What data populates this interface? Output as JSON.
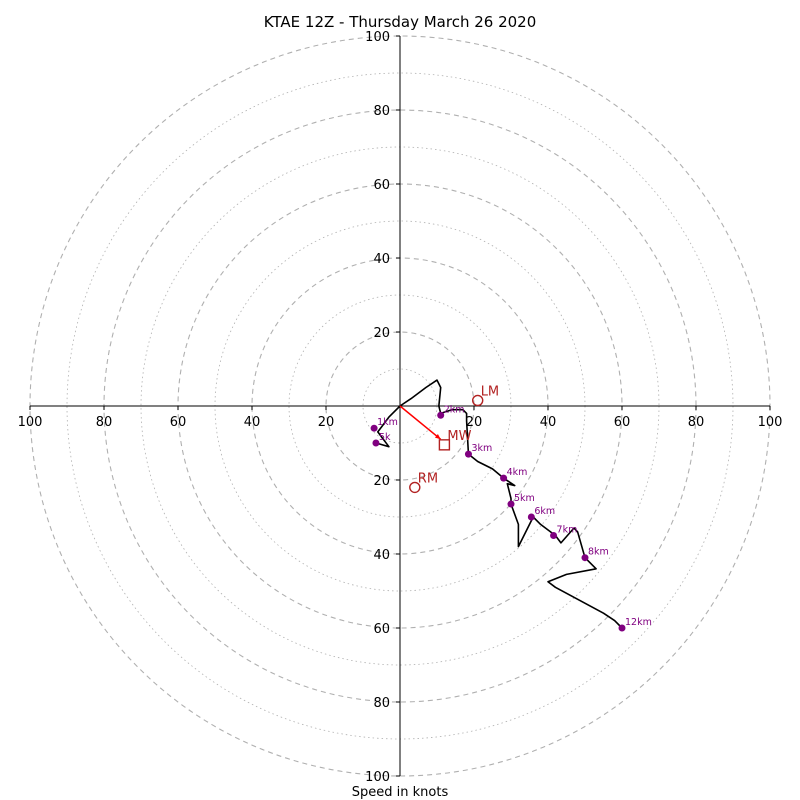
{
  "chart_data": {
    "type": "hodograph",
    "title": "KTAE 12Z - Thursday March 26 2020",
    "xlabel": "Speed in knots",
    "ring_max": 100,
    "ring_step_dashed": 20,
    "ring_step_dotted": 10,
    "xlim": [
      -100,
      100
    ],
    "ylim": [
      -100,
      100
    ],
    "x_tick_labels": [
      "100",
      "80",
      "60",
      "40",
      "20",
      "20",
      "40",
      "60",
      "80",
      "100"
    ],
    "x_tick_values": [
      -100,
      -80,
      -60,
      -40,
      -20,
      20,
      40,
      60,
      80,
      100
    ],
    "y_tick_labels": [
      "100",
      "80",
      "60",
      "40",
      "20",
      "20",
      "40",
      "60",
      "80",
      "100"
    ],
    "y_tick_values": [
      100,
      80,
      60,
      40,
      20,
      -20,
      -40,
      -60,
      -80,
      -100
    ],
    "hodograph_line": [
      [
        -6.5,
        -10
      ],
      [
        -3,
        -11
      ],
      [
        -6,
        -7
      ],
      [
        -3,
        -3
      ],
      [
        0,
        0
      ],
      [
        3,
        2
      ],
      [
        7,
        5
      ],
      [
        10,
        7
      ],
      [
        11,
        5
      ],
      [
        10.5,
        0
      ],
      [
        11,
        -2
      ],
      [
        14,
        -1
      ],
      [
        17,
        -1
      ],
      [
        18,
        -2
      ],
      [
        18,
        -4
      ],
      [
        18.5,
        -13
      ],
      [
        21,
        -15
      ],
      [
        25,
        -17
      ],
      [
        28,
        -19.5
      ],
      [
        31,
        -21.5
      ],
      [
        29,
        -21
      ],
      [
        30,
        -25
      ],
      [
        30,
        -26.5
      ],
      [
        32,
        -32
      ],
      [
        32,
        -38
      ],
      [
        36,
        -30
      ],
      [
        38,
        -32
      ],
      [
        42,
        -35
      ],
      [
        43.5,
        -37
      ],
      [
        47,
        -33
      ],
      [
        48,
        -34
      ],
      [
        50,
        -41
      ],
      [
        53,
        -44
      ],
      [
        45,
        -45.5
      ],
      [
        40,
        -47.5
      ],
      [
        42,
        -49
      ],
      [
        55,
        -56
      ],
      [
        58,
        -58
      ],
      [
        60,
        -60
      ]
    ],
    "altitude_points": [
      {
        "label": "SFC",
        "x": -6.5,
        "y": -10
      },
      {
        "label": "1km",
        "x": -7,
        "y": -6
      },
      {
        "label": "2km",
        "x": 11,
        "y": -2.5
      },
      {
        "label": "3km",
        "x": 18.5,
        "y": -13
      },
      {
        "label": "4km",
        "x": 28,
        "y": -19.5
      },
      {
        "label": "5km",
        "x": 30,
        "y": -26.5
      },
      {
        "label": "6km",
        "x": 35.5,
        "y": -30
      },
      {
        "label": "7km",
        "x": 41.5,
        "y": -35
      },
      {
        "label": "8km",
        "x": 50,
        "y": -41
      },
      {
        "label": "12km",
        "x": 60,
        "y": -60
      }
    ],
    "point_labels_shown": {
      "SFC": "5k",
      "1km": "1km"
    },
    "motion_markers": [
      {
        "label": "LM",
        "x": 21,
        "y": 1.5,
        "shape": "circle"
      },
      {
        "label": "MW",
        "x": 12,
        "y": -10.5,
        "shape": "square"
      },
      {
        "label": "RM",
        "x": 4,
        "y": -22,
        "shape": "circle"
      }
    ],
    "shear_vector": {
      "from": [
        0,
        0
      ],
      "to": [
        11,
        -9
      ]
    },
    "colors": {
      "line": "#000000",
      "points": "#800080",
      "motion": "#b22222",
      "shear": "#ff0000",
      "rings": "#b0b0b0"
    }
  }
}
